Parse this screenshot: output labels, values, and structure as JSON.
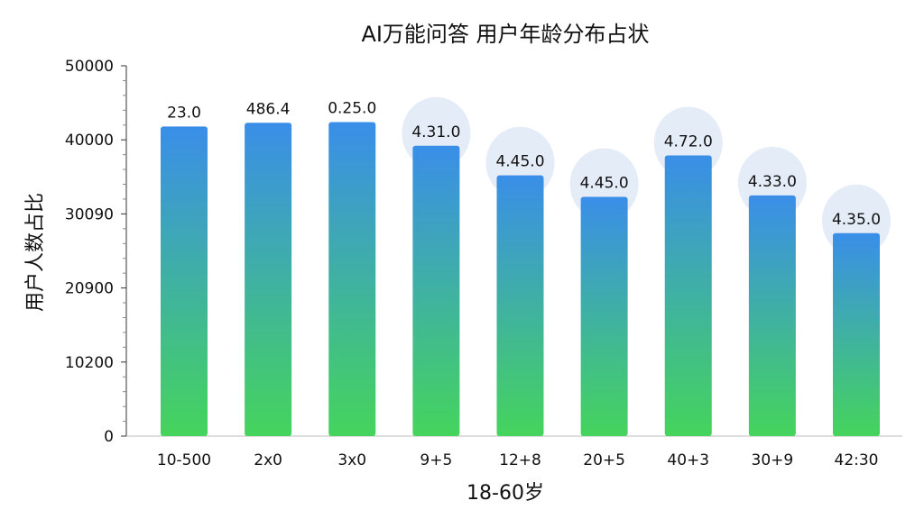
{
  "chart_data": {
    "type": "bar",
    "title": "AI万能问答 用户年龄分布占状",
    "xlabel": "18-60岁",
    "ylabel": "用户人数占比",
    "y_tick_labels": [
      "0",
      "10200",
      "20900",
      "30090",
      "40000",
      "50000"
    ],
    "ylim": [
      0,
      50000
    ],
    "grid": false,
    "categories": [
      "10-500",
      "2x0",
      "3x0",
      "9+5",
      "12+8",
      "20+5",
      "40+3",
      "30+9",
      "42:30"
    ],
    "values": [
      41800,
      42300,
      42400,
      39200,
      35200,
      32300,
      37900,
      32500,
      27400
    ],
    "data_labels": [
      "23.0",
      "486.4",
      "0.25.0",
      "4.31.0",
      "4.45.0",
      "4.45.0",
      "4.72.0",
      "4.33.0",
      "4.35.0"
    ],
    "highlighted": [
      false,
      false,
      false,
      true,
      true,
      true,
      true,
      true,
      true
    ],
    "colors": {
      "bar_top": "#3a8ee8",
      "bar_bottom": "#45d45c",
      "highlight": "#e4ecf8",
      "axis": "#333333"
    }
  }
}
